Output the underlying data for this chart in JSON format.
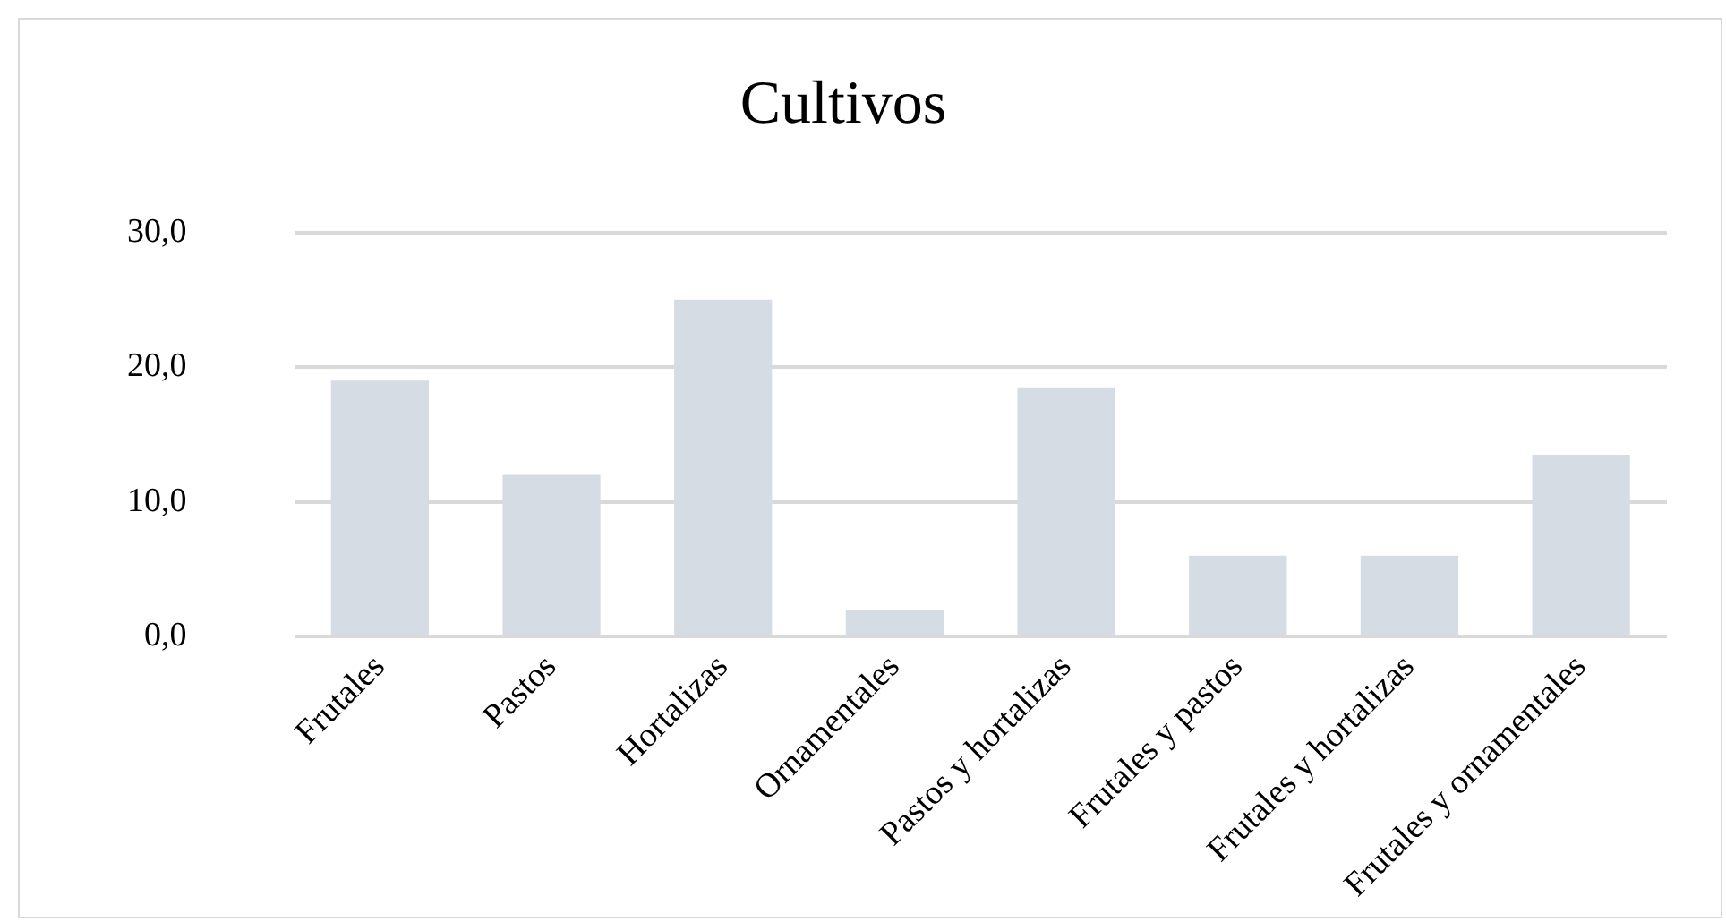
{
  "chart_data": {
    "type": "bar",
    "title": "Cultivos",
    "categories": [
      "Frutales",
      "Pastos",
      "Hortalizas",
      "Ornamentales",
      "Pastos y hortalizas",
      "Frutales y pastos",
      "Frutales y hortalizas",
      "Frutales y ornamentales"
    ],
    "values": [
      19,
      12,
      25,
      2,
      18.5,
      6,
      6,
      13.5
    ],
    "color": "#d6dce4",
    "ylim": [
      0,
      30
    ],
    "yticks": [
      {
        "value": 0,
        "label": "0,0"
      },
      {
        "value": 10,
        "label": "10,0"
      },
      {
        "value": 20,
        "label": "20,0"
      },
      {
        "value": 30,
        "label": "30,0"
      }
    ],
    "grid": "y",
    "legend": false
  }
}
